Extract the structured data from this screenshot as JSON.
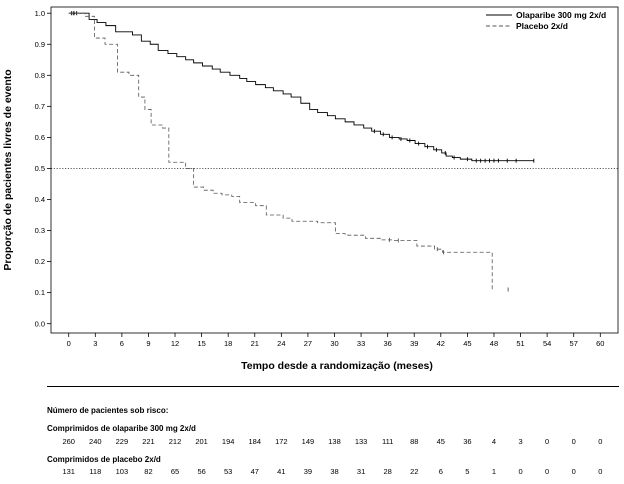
{
  "chart_data": {
    "type": "line",
    "xlabel": "Tempo desde a randomização (meses)",
    "ylabel": "Proporção de pacientes livres de evento",
    "xlim": [
      -2,
      62
    ],
    "ylim": [
      -0.03,
      1.02
    ],
    "xticks": [
      0,
      3,
      6,
      9,
      12,
      15,
      18,
      21,
      24,
      27,
      30,
      33,
      36,
      39,
      42,
      45,
      48,
      51,
      54,
      57,
      60
    ],
    "yticks": [
      "0.0",
      "0.1",
      "0.2",
      "0.3",
      "0.4",
      "0.5",
      "0.6",
      "0.7",
      "0.8",
      "0.9",
      "1.0"
    ],
    "reference_line": {
      "y": 0.5,
      "style": "dotted"
    },
    "legend_position": "top-right",
    "series": [
      {
        "name": "Olaparibe 300 mg 2x/d",
        "style": "solid",
        "color": "#000000",
        "x": [
          0,
          2.3,
          3.2,
          4.2,
          5.3,
          7.2,
          8.2,
          9.2,
          10.1,
          11.2,
          12.2,
          13.2,
          14.1,
          15.1,
          16.2,
          17.1,
          18.2,
          19.3,
          20.1,
          21.1,
          22.2,
          23.1,
          24.2,
          25.1,
          26.2,
          27.2,
          28.1,
          29.2,
          30.1,
          31.2,
          32.2,
          33.3,
          34.2,
          35.2,
          36.2,
          37.3,
          38.2,
          39.1,
          40.2,
          41.2,
          42.1,
          42.6,
          43.3,
          44.2,
          45.5,
          52.5
        ],
        "y": [
          1.0,
          0.98,
          0.97,
          0.96,
          0.94,
          0.93,
          0.91,
          0.9,
          0.88,
          0.87,
          0.86,
          0.85,
          0.84,
          0.83,
          0.82,
          0.81,
          0.8,
          0.79,
          0.78,
          0.77,
          0.76,
          0.75,
          0.74,
          0.73,
          0.71,
          0.69,
          0.68,
          0.67,
          0.66,
          0.65,
          0.64,
          0.63,
          0.62,
          0.61,
          0.6,
          0.595,
          0.59,
          0.58,
          0.57,
          0.56,
          0.55,
          0.54,
          0.535,
          0.53,
          0.525,
          0.525
        ],
        "censored": [
          0.3,
          0.6,
          0.9,
          34.5,
          35.5,
          36.5,
          37.5,
          38.5,
          39.5,
          40.5,
          41.5,
          42.5,
          43.5,
          45,
          46,
          46.5,
          47,
          47.5,
          48,
          48.5,
          49.5,
          50.5,
          52.5
        ]
      },
      {
        "name": "Placebo 2x/d",
        "style": "dashed",
        "color": "#555555",
        "x": [
          0,
          1.8,
          2.9,
          4.1,
          5.5,
          6.8,
          7.9,
          8.6,
          9.3,
          10.6,
          11.3,
          13.2,
          14.1,
          15.2,
          16.3,
          17.3,
          18.4,
          19.3,
          21.1,
          22.3,
          24.2,
          25.2,
          28.1,
          30.1,
          31.2,
          33.5,
          35.2,
          36.5,
          39.3,
          41.3,
          42.2,
          47.3,
          47.8
        ],
        "y": [
          1.0,
          0.99,
          0.92,
          0.9,
          0.81,
          0.8,
          0.73,
          0.69,
          0.64,
          0.63,
          0.52,
          0.5,
          0.44,
          0.43,
          0.42,
          0.415,
          0.41,
          0.39,
          0.38,
          0.35,
          0.34,
          0.33,
          0.325,
          0.29,
          0.285,
          0.275,
          0.27,
          0.268,
          0.25,
          0.24,
          0.23,
          0.23,
          0.11
        ],
        "censored": [
          0.5,
          36.2,
          37.2,
          41.6,
          42.3,
          49.6
        ]
      }
    ],
    "risk_table": {
      "header": "Número de pacientes sob risco:",
      "times": [
        0,
        3,
        6,
        9,
        12,
        15,
        18,
        21,
        24,
        27,
        30,
        33,
        36,
        39,
        42,
        45,
        48,
        51,
        54,
        57,
        60
      ],
      "groups": [
        {
          "label": "Comprimidos de olaparibe 300 mg 2x/d",
          "counts": [
            "260",
            "240",
            "229",
            "221",
            "212",
            "201",
            "194",
            "184",
            "172",
            "149",
            "138",
            "133",
            "111",
            "88",
            "45",
            "36",
            "4",
            "3",
            "0",
            "0",
            "0"
          ]
        },
        {
          "label": "Comprimidos de placebo 2x/d",
          "counts": [
            "131",
            "118",
            "103",
            "82",
            "65",
            "56",
            "53",
            "47",
            "41",
            "39",
            "38",
            "31",
            "28",
            "22",
            "6",
            "5",
            "1",
            "0",
            "0",
            "0",
            "0"
          ]
        }
      ]
    }
  }
}
